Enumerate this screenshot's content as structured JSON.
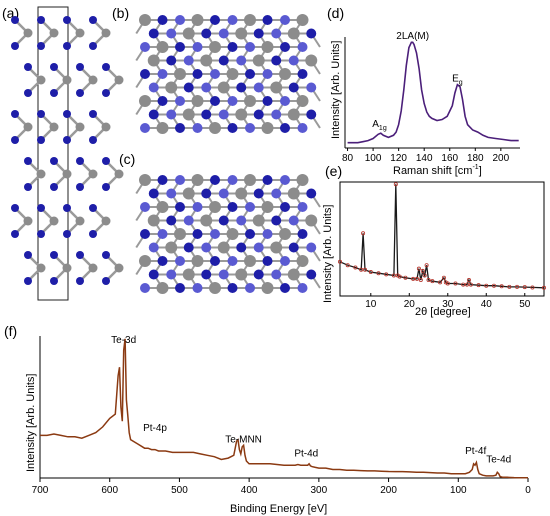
{
  "figure": {
    "panel_labels": [
      "(a)",
      "(b)",
      "(c)",
      "(d)",
      "(e)",
      "(f)"
    ],
    "colors": {
      "atom_te": "#1e1ea8",
      "atom_te_light": "#5a5ad2",
      "atom_pt": "#8c8c8c",
      "bond": "#9a9a9a",
      "raman_line": "#4b1f7a",
      "xrd_points": "#b5332a",
      "xrd_fit": "#1a1a1a",
      "xps_line": "#8b3a12"
    }
  },
  "chart_data": [
    {
      "panel": "(d)",
      "type": "line",
      "title": "",
      "xlabel": "Raman shift [cm",
      "xlabel_sup": "-1",
      "xlabel_end": "]",
      "ylabel": "Intensity [Arb. Units]",
      "xlim": [
        78,
        215
      ],
      "ylim": [
        0,
        1.05
      ],
      "xticks": [
        80,
        100,
        120,
        140,
        160,
        180,
        200
      ],
      "annotations": [
        {
          "text": "A",
          "sub": "1g",
          "x": 105,
          "y": 0.2
        },
        {
          "text": "2LA(M)",
          "sub": "",
          "x": 131,
          "y": 1.03
        },
        {
          "text": "E",
          "sub": "g",
          "x": 166,
          "y": 0.63
        }
      ],
      "x": [
        80,
        84,
        88,
        92,
        96,
        100,
        104,
        106,
        108,
        112,
        116,
        118,
        120,
        122,
        124,
        126,
        128,
        130,
        131,
        132,
        134,
        136,
        138,
        140,
        142,
        144,
        146,
        150,
        154,
        158,
        162,
        164,
        166,
        168,
        170,
        172,
        174,
        178,
        182,
        186,
        190,
        196,
        202,
        208,
        214
      ],
      "y": [
        0.05,
        0.05,
        0.05,
        0.06,
        0.07,
        0.09,
        0.13,
        0.14,
        0.12,
        0.1,
        0.12,
        0.15,
        0.22,
        0.35,
        0.55,
        0.78,
        0.95,
        1.0,
        1.0,
        0.98,
        0.9,
        0.75,
        0.55,
        0.42,
        0.34,
        0.3,
        0.28,
        0.26,
        0.27,
        0.3,
        0.4,
        0.52,
        0.6,
        0.58,
        0.46,
        0.3,
        0.22,
        0.17,
        0.15,
        0.12,
        0.1,
        0.09,
        0.08,
        0.07,
        0.07
      ]
    },
    {
      "panel": "(e)",
      "type": "line",
      "title": "",
      "xlabel": "2θ [degree]",
      "ylabel": "Intensity [Arb. Units]",
      "xlim": [
        2,
        55
      ],
      "ylim": [
        0,
        1.0
      ],
      "xticks": [
        10,
        20,
        30,
        40,
        50
      ],
      "series": [
        {
          "x": [
            2,
            4,
            6,
            7.5,
            8,
            8.5,
            10,
            12,
            14,
            16,
            16.5,
            17,
            17.5,
            19,
            21,
            22,
            22.5,
            23,
            23.5,
            24,
            24.5,
            25,
            26,
            28,
            29,
            29.5,
            30,
            32,
            34,
            35,
            35.5,
            36,
            38,
            40,
            42,
            44,
            46,
            48,
            50,
            52,
            55
          ],
          "y": [
            0.3,
            0.27,
            0.25,
            0.23,
            0.55,
            0.23,
            0.21,
            0.2,
            0.19,
            0.18,
            0.98,
            0.18,
            0.17,
            0.16,
            0.15,
            0.15,
            0.24,
            0.14,
            0.22,
            0.18,
            0.27,
            0.14,
            0.13,
            0.12,
            0.16,
            0.12,
            0.11,
            0.11,
            0.1,
            0.1,
            0.14,
            0.1,
            0.095,
            0.09,
            0.09,
            0.085,
            0.08,
            0.08,
            0.078,
            0.075,
            0.072
          ]
        }
      ]
    },
    {
      "panel": "(f)",
      "type": "line",
      "title": "",
      "xlabel": "Binding Energy [eV]",
      "ylabel": "Intensity [Arb. Units]",
      "xlim": [
        700,
        0
      ],
      "ylim": [
        0,
        1.0
      ],
      "xticks": [
        700,
        600,
        500,
        400,
        300,
        200,
        100,
        0
      ],
      "annotations": [
        {
          "text": "Te-3d",
          "x": 580,
          "y": 0.95
        },
        {
          "text": "Pt-4p",
          "x": 535,
          "y": 0.33
        },
        {
          "text": "Te-MNN",
          "x": 408,
          "y": 0.25
        },
        {
          "text": "Pt-4d",
          "x": 318,
          "y": 0.15
        },
        {
          "text": "Pt-4f",
          "x": 75,
          "y": 0.17
        },
        {
          "text": "Te-4d",
          "x": 42,
          "y": 0.11
        }
      ],
      "x": [
        700,
        690,
        680,
        670,
        660,
        650,
        640,
        630,
        620,
        610,
        600,
        592,
        588,
        586,
        584,
        582,
        580,
        578,
        576,
        574,
        572,
        570,
        560,
        550,
        545,
        540,
        535,
        530,
        520,
        510,
        500,
        490,
        480,
        470,
        460,
        450,
        440,
        430,
        422,
        418,
        416,
        414,
        412,
        410,
        408,
        406,
        404,
        402,
        400,
        390,
        380,
        370,
        360,
        350,
        340,
        334,
        330,
        326,
        320,
        316,
        314,
        312,
        310,
        305,
        300,
        290,
        280,
        270,
        260,
        250,
        240,
        230,
        220,
        210,
        200,
        190,
        180,
        170,
        160,
        150,
        140,
        130,
        120,
        110,
        100,
        90,
        84,
        80,
        78,
        76,
        74,
        72,
        70,
        65,
        60,
        55,
        50,
        46,
        44,
        42,
        40,
        36,
        30,
        20,
        10,
        0
      ],
      "y": [
        0.3,
        0.3,
        0.31,
        0.3,
        0.29,
        0.29,
        0.28,
        0.3,
        0.32,
        0.36,
        0.42,
        0.45,
        0.72,
        0.78,
        0.5,
        0.4,
        0.9,
        0.98,
        0.55,
        0.44,
        0.32,
        0.27,
        0.24,
        0.21,
        0.21,
        0.2,
        0.2,
        0.19,
        0.19,
        0.18,
        0.18,
        0.18,
        0.18,
        0.17,
        0.16,
        0.15,
        0.13,
        0.14,
        0.16,
        0.26,
        0.27,
        0.2,
        0.17,
        0.22,
        0.23,
        0.16,
        0.12,
        0.11,
        0.1,
        0.1,
        0.1,
        0.1,
        0.095,
        0.09,
        0.09,
        0.09,
        0.095,
        0.09,
        0.09,
        0.09,
        0.1,
        0.085,
        0.08,
        0.075,
        0.07,
        0.07,
        0.06,
        0.06,
        0.055,
        0.055,
        0.052,
        0.05,
        0.05,
        0.048,
        0.046,
        0.045,
        0.045,
        0.043,
        0.04,
        0.04,
        0.038,
        0.035,
        0.035,
        0.03,
        0.03,
        0.03,
        0.04,
        0.06,
        0.1,
        0.09,
        0.11,
        0.06,
        0.03,
        0.02,
        0.015,
        0.015,
        0.015,
        0.02,
        0.04,
        0.03,
        0.01,
        0.005,
        0.005,
        0.003,
        0.002,
        0.002
      ]
    }
  ]
}
